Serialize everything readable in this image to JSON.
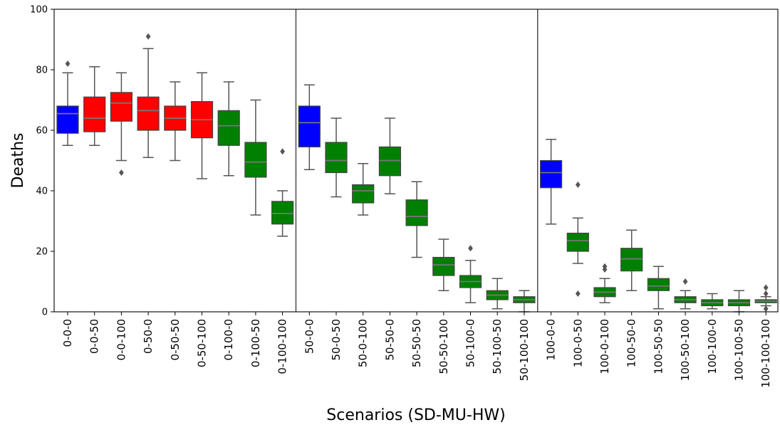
{
  "chart_data": {
    "type": "box",
    "xlabel": "Scenarios (SD-MU-HW)",
    "ylabel": "Deaths",
    "ylim": [
      0,
      100
    ],
    "yticks": [
      0,
      20,
      40,
      60,
      80,
      100
    ],
    "grid": false,
    "legend": "none",
    "colors": {
      "baseline": "#0000ff",
      "worse": "#ff0000",
      "better": "#008000",
      "median": "#777777",
      "whisker": "#555555",
      "outlier": "#555555"
    },
    "group_separators_after": [
      "0-100-100",
      "50-100-100"
    ],
    "categories": [
      "0-0-0",
      "0-0-50",
      "0-0-100",
      "0-50-0",
      "0-50-50",
      "0-50-100",
      "0-100-0",
      "0-100-50",
      "0-100-100",
      "50-0-0",
      "50-0-50",
      "50-0-100",
      "50-50-0",
      "50-50-50",
      "50-50-100",
      "50-100-0",
      "50-100-50",
      "50-100-100",
      "100-0-0",
      "100-0-50",
      "100-0-100",
      "100-50-0",
      "100-50-50",
      "100-50-100",
      "100-100-0",
      "100-100-50",
      "100-100-100"
    ],
    "boxes": [
      {
        "label": "0-0-0",
        "color": "#0000ff",
        "min": 55,
        "q1": 59,
        "median": 65.5,
        "q3": 68,
        "max": 79,
        "outliers": [
          82
        ]
      },
      {
        "label": "0-0-50",
        "color": "#ff0000",
        "min": 55,
        "q1": 59.5,
        "median": 64,
        "q3": 71,
        "max": 81,
        "outliers": []
      },
      {
        "label": "0-0-100",
        "color": "#ff0000",
        "min": 50,
        "q1": 63,
        "median": 69,
        "q3": 72.5,
        "max": 79,
        "outliers": [
          46
        ]
      },
      {
        "label": "0-50-0",
        "color": "#ff0000",
        "min": 51,
        "q1": 60,
        "median": 66.5,
        "q3": 71,
        "max": 87,
        "outliers": [
          91
        ]
      },
      {
        "label": "0-50-50",
        "color": "#ff0000",
        "min": 50,
        "q1": 60,
        "median": 64,
        "q3": 68,
        "max": 76,
        "outliers": []
      },
      {
        "label": "0-50-100",
        "color": "#ff0000",
        "min": 44,
        "q1": 57.5,
        "median": 63.5,
        "q3": 69.5,
        "max": 79,
        "outliers": []
      },
      {
        "label": "0-100-0",
        "color": "#008000",
        "min": 45,
        "q1": 55,
        "median": 61.5,
        "q3": 66.5,
        "max": 76,
        "outliers": []
      },
      {
        "label": "0-100-50",
        "color": "#008000",
        "min": 32,
        "q1": 44.5,
        "median": 49.5,
        "q3": 56,
        "max": 70,
        "outliers": []
      },
      {
        "label": "0-100-100",
        "color": "#008000",
        "min": 25,
        "q1": 29,
        "median": 32.5,
        "q3": 36.5,
        "max": 40,
        "outliers": [
          53
        ]
      },
      {
        "label": "50-0-0",
        "color": "#0000ff",
        "min": 47,
        "q1": 54.5,
        "median": 62.5,
        "q3": 68,
        "max": 75,
        "outliers": []
      },
      {
        "label": "50-0-50",
        "color": "#008000",
        "min": 38,
        "q1": 46,
        "median": 50,
        "q3": 56,
        "max": 64,
        "outliers": []
      },
      {
        "label": "50-0-100",
        "color": "#008000",
        "min": 32,
        "q1": 36,
        "median": 40,
        "q3": 42,
        "max": 49,
        "outliers": []
      },
      {
        "label": "50-50-0",
        "color": "#008000",
        "min": 39,
        "q1": 45,
        "median": 50,
        "q3": 54.5,
        "max": 64,
        "outliers": []
      },
      {
        "label": "50-50-50",
        "color": "#008000",
        "min": 18,
        "q1": 28.5,
        "median": 31.5,
        "q3": 37,
        "max": 43,
        "outliers": []
      },
      {
        "label": "50-50-100",
        "color": "#008000",
        "min": 7,
        "q1": 12,
        "median": 15.5,
        "q3": 18,
        "max": 24,
        "outliers": []
      },
      {
        "label": "50-100-0",
        "color": "#008000",
        "min": 3,
        "q1": 8,
        "median": 10,
        "q3": 12,
        "max": 17,
        "outliers": [
          21
        ]
      },
      {
        "label": "50-100-50",
        "color": "#008000",
        "min": 1,
        "q1": 4,
        "median": 5.5,
        "q3": 7,
        "max": 11,
        "outliers": []
      },
      {
        "label": "50-100-100",
        "color": "#008000",
        "min": 0,
        "q1": 3,
        "median": 4,
        "q3": 5,
        "max": 7,
        "outliers": []
      },
      {
        "label": "100-0-0",
        "color": "#0000ff",
        "min": 29,
        "q1": 41,
        "median": 46,
        "q3": 50,
        "max": 57,
        "outliers": []
      },
      {
        "label": "100-0-50",
        "color": "#008000",
        "min": 16,
        "q1": 20,
        "median": 23.5,
        "q3": 26,
        "max": 31,
        "outliers": [
          42,
          6
        ]
      },
      {
        "label": "100-0-100",
        "color": "#008000",
        "min": 3,
        "q1": 5,
        "median": 6.5,
        "q3": 8,
        "max": 11,
        "outliers": [
          14,
          15
        ]
      },
      {
        "label": "100-50-0",
        "color": "#008000",
        "min": 7,
        "q1": 13.5,
        "median": 17.5,
        "q3": 21,
        "max": 27,
        "outliers": []
      },
      {
        "label": "100-50-50",
        "color": "#008000",
        "min": 1,
        "q1": 7,
        "median": 8.5,
        "q3": 11,
        "max": 15,
        "outliers": []
      },
      {
        "label": "100-50-100",
        "color": "#008000",
        "min": 1,
        "q1": 3,
        "median": 4,
        "q3": 5,
        "max": 7,
        "outliers": [
          10
        ]
      },
      {
        "label": "100-100-0",
        "color": "#008000",
        "min": 1,
        "q1": 2,
        "median": 3,
        "q3": 4,
        "max": 6,
        "outliers": []
      },
      {
        "label": "100-100-50",
        "color": "#008000",
        "min": 0,
        "q1": 2,
        "median": 3,
        "q3": 4,
        "max": 7,
        "outliers": []
      },
      {
        "label": "100-100-100",
        "color": "#008000",
        "min": 2,
        "q1": 3,
        "median": 3.5,
        "q3": 4,
        "max": 5,
        "outliers": [
          8,
          6,
          1
        ]
      }
    ]
  }
}
